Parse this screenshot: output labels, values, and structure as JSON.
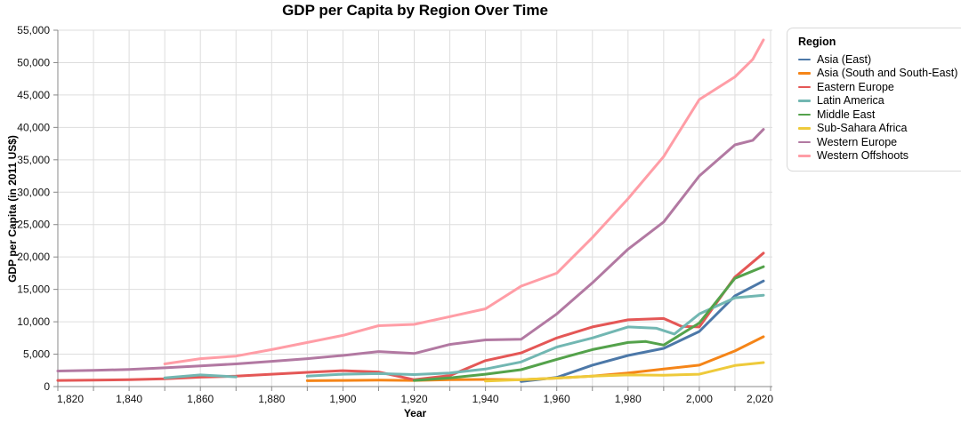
{
  "page_title": "GDP per Capita by Region Over Time",
  "style": {
    "background": "#ffffff",
    "grid_color": "#dddddd",
    "axis_color": "#888888",
    "label_color": "#111111"
  },
  "chart_data": {
    "type": "line",
    "title": "GDP per Capita by Region Over Time",
    "xlabel": "Year",
    "ylabel": "GDP per Capita (in 2011 US$)",
    "legend_title": "Region",
    "legend_position": "top-right-outside",
    "grid": true,
    "x_domain": [
      1820,
      2020.5
    ],
    "y_domain": [
      0,
      55000
    ],
    "x_grid_ticks": [
      1820,
      1830,
      1840,
      1850,
      1860,
      1870,
      1880,
      1890,
      1900,
      1910,
      1920,
      1930,
      1940,
      1950,
      1960,
      1970,
      1980,
      1990,
      2000,
      2010,
      2020
    ],
    "x_label_ticks": [
      1820,
      1840,
      1860,
      1880,
      1900,
      1920,
      1940,
      1960,
      1980,
      2000,
      2020
    ],
    "y_ticks": [
      0,
      5000,
      10000,
      15000,
      20000,
      25000,
      30000,
      35000,
      40000,
      45000,
      50000,
      55000
    ],
    "series": [
      {
        "name": "Asia (East)",
        "color": "#4c78a8",
        "segments": [
          [
            [
              1950,
              800
            ],
            [
              1960,
              1400
            ],
            [
              1970,
              3300
            ],
            [
              1980,
              4800
            ],
            [
              1990,
              5900
            ],
            [
              2000,
              8500
            ],
            [
              2010,
              14000
            ],
            [
              2018,
              16300
            ]
          ]
        ]
      },
      {
        "name": "Asia (South and South-East)",
        "color": "#f58518",
        "segments": [
          [
            [
              1890,
              900
            ],
            [
              1900,
              950
            ],
            [
              1910,
              1000
            ],
            [
              1920,
              950
            ],
            [
              1930,
              1050
            ],
            [
              1940,
              1100
            ],
            [
              1950,
              1050
            ],
            [
              1960,
              1300
            ],
            [
              1970,
              1600
            ],
            [
              1980,
              2100
            ],
            [
              1990,
              2700
            ],
            [
              2000,
              3300
            ],
            [
              2010,
              5500
            ],
            [
              2018,
              7700
            ]
          ]
        ]
      },
      {
        "name": "Eastern Europe",
        "color": "#e45756",
        "segments": [
          [
            [
              1820,
              950
            ],
            [
              1830,
              1000
            ],
            [
              1840,
              1050
            ],
            [
              1850,
              1200
            ],
            [
              1860,
              1450
            ],
            [
              1870,
              1600
            ],
            [
              1880,
              1900
            ],
            [
              1890,
              2200
            ],
            [
              1900,
              2450
            ],
            [
              1910,
              2250
            ],
            [
              1920,
              1050
            ],
            [
              1930,
              1700
            ],
            [
              1940,
              4000
            ],
            [
              1950,
              5200
            ],
            [
              1960,
              7500
            ],
            [
              1970,
              9200
            ],
            [
              1980,
              10300
            ],
            [
              1990,
              10500
            ],
            [
              1995,
              9300
            ],
            [
              2000,
              9200
            ],
            [
              2010,
              16900
            ],
            [
              2018,
              20600
            ]
          ]
        ]
      },
      {
        "name": "Latin America",
        "color": "#72b7b2",
        "segments": [
          [
            [
              1850,
              1350
            ],
            [
              1860,
              1800
            ],
            [
              1870,
              1500
            ]
          ],
          [
            [
              1890,
              1600
            ],
            [
              1900,
              1900
            ],
            [
              1910,
              2000
            ],
            [
              1920,
              1850
            ],
            [
              1930,
              2100
            ],
            [
              1940,
              2700
            ],
            [
              1950,
              3800
            ],
            [
              1960,
              6100
            ],
            [
              1970,
              7500
            ],
            [
              1980,
              9200
            ],
            [
              1988,
              9000
            ],
            [
              1993,
              8100
            ],
            [
              2000,
              11200
            ],
            [
              2010,
              13700
            ],
            [
              2018,
              14100
            ]
          ]
        ]
      },
      {
        "name": "Middle East",
        "color": "#54a24b",
        "segments": [
          [
            [
              1920,
              950
            ],
            [
              1930,
              1350
            ],
            [
              1940,
              1900
            ],
            [
              1950,
              2600
            ],
            [
              1960,
              4200
            ],
            [
              1970,
              5700
            ],
            [
              1980,
              6800
            ],
            [
              1985,
              6950
            ],
            [
              1990,
              6400
            ],
            [
              2000,
              9800
            ],
            [
              2010,
              16700
            ],
            [
              2018,
              18500
            ]
          ]
        ]
      },
      {
        "name": "Sub-Sahara Africa",
        "color": "#eeca3b",
        "segments": [
          [
            [
              1940,
              850
            ],
            [
              1950,
              1050
            ],
            [
              1960,
              1300
            ],
            [
              1970,
              1600
            ],
            [
              1980,
              1800
            ],
            [
              1990,
              1750
            ],
            [
              2000,
              1900
            ],
            [
              2010,
              3250
            ],
            [
              2018,
              3700
            ]
          ]
        ]
      },
      {
        "name": "Western Europe",
        "color": "#b279a2",
        "segments": [
          [
            [
              1820,
              2400
            ],
            [
              1830,
              2500
            ],
            [
              1840,
              2650
            ],
            [
              1850,
              2900
            ],
            [
              1860,
              3200
            ],
            [
              1870,
              3500
            ],
            [
              1880,
              3900
            ],
            [
              1890,
              4300
            ],
            [
              1900,
              4800
            ],
            [
              1910,
              5400
            ],
            [
              1920,
              5100
            ],
            [
              1930,
              6500
            ],
            [
              1940,
              7200
            ],
            [
              1950,
              7300
            ],
            [
              1960,
              11200
            ],
            [
              1970,
              16000
            ],
            [
              1980,
              21200
            ],
            [
              1990,
              25400
            ],
            [
              2000,
              32500
            ],
            [
              2010,
              37300
            ],
            [
              2015,
              38000
            ],
            [
              2018,
              39700
            ]
          ]
        ]
      },
      {
        "name": "Western Offshoots",
        "color": "#ff9da6",
        "segments": [
          [
            [
              1850,
              3500
            ],
            [
              1860,
              4300
            ],
            [
              1870,
              4700
            ],
            [
              1880,
              5700
            ],
            [
              1890,
              6800
            ],
            [
              1900,
              7900
            ],
            [
              1910,
              9400
            ],
            [
              1920,
              9600
            ],
            [
              1930,
              10800
            ],
            [
              1940,
              12000
            ],
            [
              1950,
              15500
            ],
            [
              1960,
              17500
            ],
            [
              1970,
              23000
            ],
            [
              1980,
              29000
            ],
            [
              1990,
              35500
            ],
            [
              2000,
              44300
            ],
            [
              2010,
              47800
            ],
            [
              2015,
              50500
            ],
            [
              2018,
              53500
            ]
          ]
        ]
      }
    ]
  }
}
